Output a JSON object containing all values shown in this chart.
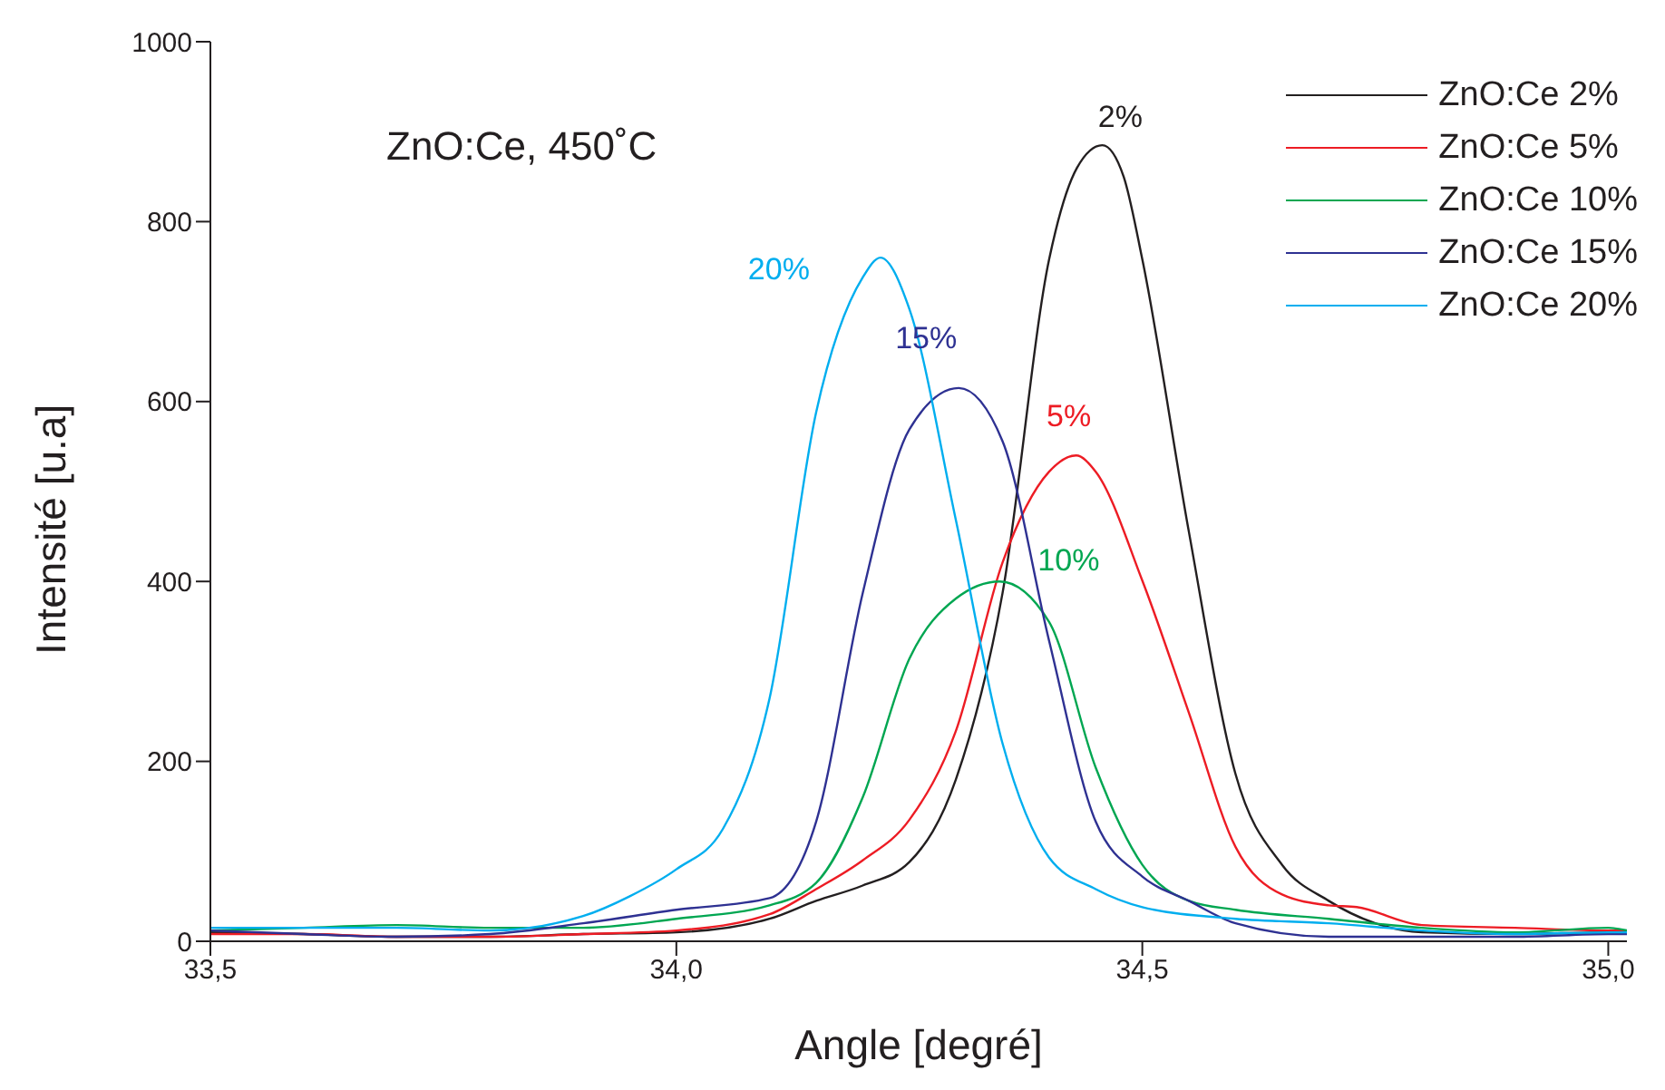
{
  "chart_data": {
    "type": "line",
    "xlabel": "Angle [degré]",
    "ylabel": "Intensité [u.a]",
    "xlim": [
      33.5,
      35.02
    ],
    "ylim": [
      0,
      1000
    ],
    "xticks": [
      {
        "value": 33.5,
        "label": "33,5"
      },
      {
        "value": 34.0,
        "label": "34,0"
      },
      {
        "value": 34.5,
        "label": "34,5"
      },
      {
        "value": 35.0,
        "label": "35,0"
      }
    ],
    "yticks": [
      0,
      200,
      400,
      600,
      800,
      1000
    ],
    "grid": false,
    "legend": "top right",
    "marker": "none",
    "line_style": "solid",
    "annotations": [
      "ZnO:Ce, 450˚C",
      {
        "text": "2%",
        "x": 34.457,
        "y": 885
      },
      {
        "text": "5%",
        "x": 34.429,
        "y": 540
      },
      {
        "text": "10%",
        "x": 34.347,
        "y": 400
      },
      {
        "text": "15%",
        "x": 34.303,
        "y": 615
      },
      {
        "text": "20%",
        "x": 34.219,
        "y": 760
      }
    ],
    "series": [
      {
        "name": "ZnO:Ce 2%",
        "color": "#231f20",
        "x": [
          33.5,
          33.6,
          33.7,
          33.8,
          33.9,
          34.0,
          34.1,
          34.15,
          34.2,
          34.25,
          34.3,
          34.35,
          34.4,
          34.43,
          34.457,
          34.48,
          34.5,
          34.55,
          34.6,
          34.65,
          34.7,
          34.75,
          34.8,
          34.9,
          35.0,
          35.02
        ],
        "values": [
          10,
          8,
          5,
          5,
          8,
          10,
          25,
          45,
          62,
          88,
          180,
          387,
          758,
          860,
          885,
          850,
          758,
          455,
          186,
          85,
          45,
          20,
          10,
          8,
          10,
          10
        ]
      },
      {
        "name": "ZnO:Ce 5%",
        "color": "#ed1c24",
        "x": [
          33.5,
          33.6,
          33.7,
          33.8,
          33.9,
          34.0,
          34.1,
          34.15,
          34.2,
          34.25,
          34.3,
          34.35,
          34.4,
          34.429,
          34.45,
          34.5,
          34.55,
          34.6,
          34.65,
          34.7,
          34.73,
          34.8,
          34.9,
          35.0,
          35.02
        ],
        "values": [
          8,
          8,
          5,
          5,
          8,
          12,
          30,
          58,
          90,
          135,
          234,
          421,
          522,
          540,
          522,
          401,
          254,
          105,
          52,
          40,
          38,
          18,
          15,
          12,
          12
        ]
      },
      {
        "name": "ZnO:Ce 10%",
        "color": "#00a651",
        "x": [
          33.5,
          33.6,
          33.7,
          33.8,
          33.9,
          34.0,
          34.1,
          34.15,
          34.2,
          34.25,
          34.3,
          34.347,
          34.4,
          34.45,
          34.5,
          34.55,
          34.6,
          34.7,
          34.8,
          34.9,
          35.0,
          35.02
        ],
        "values": [
          12,
          15,
          18,
          15,
          15,
          25,
          40,
          65,
          160,
          314,
          381,
          400,
          355,
          193,
          85,
          45,
          35,
          25,
          15,
          10,
          15,
          12
        ]
      },
      {
        "name": "ZnO:Ce 15%",
        "color": "#2e3192",
        "x": [
          33.5,
          33.6,
          33.7,
          33.8,
          33.9,
          34.0,
          34.1,
          34.15,
          34.2,
          34.25,
          34.303,
          34.35,
          34.4,
          34.45,
          34.5,
          34.55,
          34.6,
          34.7,
          34.8,
          34.9,
          35.0,
          35.02
        ],
        "values": [
          12,
          8,
          5,
          8,
          20,
          35,
          48,
          133,
          387,
          569,
          615,
          556,
          334,
          133,
          72,
          45,
          20,
          5,
          5,
          5,
          8,
          8
        ]
      },
      {
        "name": "ZnO:Ce 20%",
        "color": "#00aeef",
        "x": [
          33.5,
          33.6,
          33.7,
          33.8,
          33.9,
          33.95,
          34.0,
          34.05,
          34.1,
          34.15,
          34.2,
          34.219,
          34.25,
          34.3,
          34.35,
          34.4,
          34.45,
          34.5,
          34.6,
          34.7,
          34.8,
          34.9,
          35.0,
          35.02
        ],
        "values": [
          15,
          15,
          15,
          12,
          28,
          50,
          80,
          125,
          270,
          588,
          738,
          760,
          703,
          468,
          220,
          93,
          58,
          38,
          25,
          20,
          12,
          8,
          10,
          10
        ]
      }
    ]
  }
}
